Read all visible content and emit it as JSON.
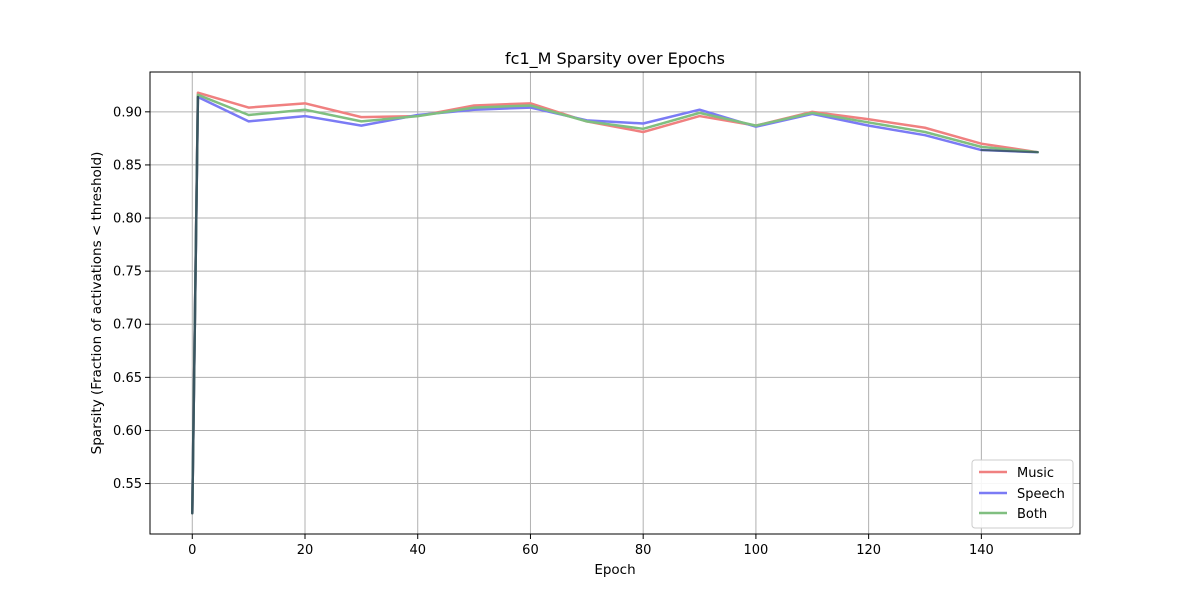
{
  "chart_data": {
    "type": "line",
    "title": "fc1_M Sparsity over Epochs",
    "xlabel": "Epoch",
    "ylabel": "Sparsity (Fraction of activations < threshold)",
    "xlim": [
      -7.5,
      157.5
    ],
    "ylim": [
      0.5025,
      0.9375
    ],
    "x_ticks": [
      0,
      20,
      40,
      60,
      80,
      100,
      120,
      140
    ],
    "y_ticks": [
      0.55,
      0.6,
      0.65,
      0.7,
      0.75,
      0.8,
      0.85,
      0.9
    ],
    "y_tick_labels": [
      "0.55",
      "0.60",
      "0.65",
      "0.70",
      "0.75",
      "0.80",
      "0.85",
      "0.90"
    ],
    "grid": true,
    "legend_position": "lower-right",
    "x": [
      0,
      1,
      10,
      20,
      30,
      40,
      50,
      60,
      70,
      80,
      90,
      100,
      110,
      120,
      130,
      140,
      150
    ],
    "series": [
      {
        "name": "Music",
        "color": "#f08080",
        "values": [
          0.522,
          0.918,
          0.904,
          0.908,
          0.895,
          0.896,
          0.906,
          0.908,
          0.891,
          0.881,
          0.896,
          0.887,
          0.9,
          0.893,
          0.885,
          0.87,
          0.862
        ]
      },
      {
        "name": "Speech",
        "color": "#7b7bf5",
        "values": [
          0.522,
          0.914,
          0.891,
          0.896,
          0.887,
          0.897,
          0.902,
          0.904,
          0.892,
          0.889,
          0.902,
          0.886,
          0.898,
          0.887,
          0.878,
          0.864,
          0.862
        ]
      },
      {
        "name": "Both",
        "color": "#80bf80",
        "values": [
          0.522,
          0.916,
          0.897,
          0.902,
          0.891,
          0.896,
          0.904,
          0.906,
          0.891,
          0.884,
          0.899,
          0.887,
          0.899,
          0.89,
          0.881,
          0.867,
          0.862
        ]
      }
    ],
    "overlay_color": "#3a5560"
  }
}
